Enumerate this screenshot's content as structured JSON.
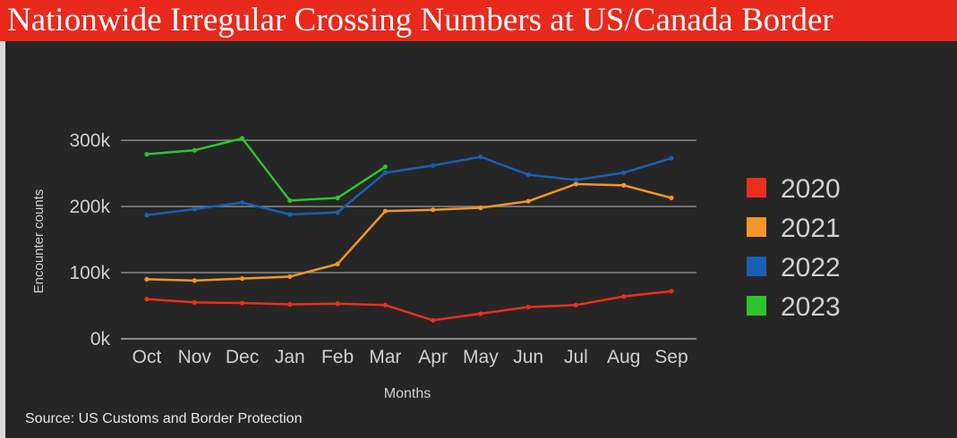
{
  "title": "Nationwide Irregular Crossing Numbers at US/Canada Border",
  "source": "Source: US Customs and Border Protection",
  "chart_data": {
    "type": "line",
    "xlabel": "Months",
    "ylabel": "Encounter counts",
    "categories": [
      "Oct",
      "Nov",
      "Dec",
      "Jan",
      "Feb",
      "Mar",
      "Apr",
      "May",
      "Jun",
      "Jul",
      "Aug",
      "Sep"
    ],
    "yticks": [
      0,
      100000,
      200000,
      300000
    ],
    "ytick_labels": [
      "0k",
      "100k",
      "200k",
      "300k"
    ],
    "ylim": [
      0,
      300000
    ],
    "grid": true,
    "legend_position": "right",
    "series": [
      {
        "name": "2020",
        "color": "#e8301c",
        "values": [
          60000,
          55000,
          54000,
          52000,
          53000,
          51000,
          28000,
          38000,
          48000,
          51000,
          64000,
          72000
        ]
      },
      {
        "name": "2021",
        "color": "#f5952a",
        "values": [
          90000,
          88000,
          91000,
          94000,
          113000,
          193000,
          195000,
          198000,
          208000,
          234000,
          232000,
          213000
        ]
      },
      {
        "name": "2022",
        "color": "#1a5fb4",
        "values": [
          187000,
          196000,
          206000,
          188000,
          191000,
          251000,
          262000,
          275000,
          248000,
          240000,
          251000,
          273000
        ]
      },
      {
        "name": "2023",
        "color": "#2ec42e",
        "values": [
          279000,
          285000,
          303000,
          209000,
          213000,
          260000,
          null,
          null,
          null,
          null,
          null,
          null
        ]
      }
    ]
  }
}
